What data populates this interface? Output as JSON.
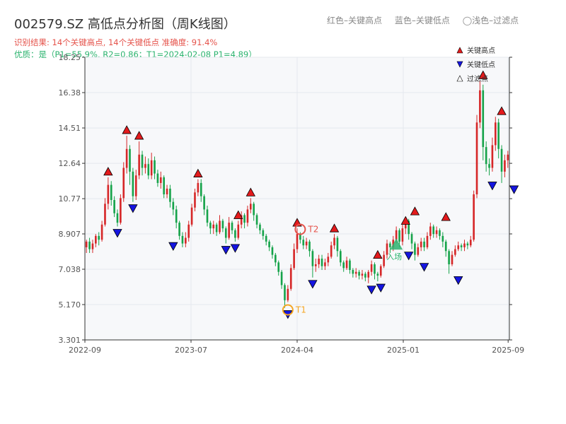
{
  "header": {
    "title": "002579.SZ 高低点分析图（周K线图）",
    "legend_high": "红色–关键高点",
    "legend_low": "蓝色–关键低点",
    "legend_filtered": "◯浅色–过滤点",
    "result_line": "识别结果: 14个关键高点, 14个关键低点  准确度: 91.4%",
    "quality_line": "优质：是（P1=55.9%, R2=0.86；T1=2024-02-08 P1=4.89）"
  },
  "colors": {
    "up": "#d62728",
    "down": "#16a34a",
    "high_marker": "#e31a1c",
    "low_marker": "#1515e0",
    "grid": "#e4e8ee",
    "plot_bg": "#f7f8fa",
    "t1": "#f5a623",
    "t2": "#e5534b",
    "entry": "#2bb36e"
  },
  "chart_data": {
    "type": "candlestick",
    "title": "002579.SZ 高低点分析图（周K线图）",
    "xlabel": "",
    "ylabel": "",
    "ylim": [
      3.301,
      18.25
    ],
    "y_ticks": [
      "3.301",
      "5.170",
      "7.038",
      "8.907",
      "10.77",
      "12.64",
      "14.51",
      "16.38",
      "18.25"
    ],
    "x_ticks": [
      "2022-09",
      "2023-07",
      "2024-04",
      "2025-01",
      "2025-09"
    ],
    "grid": true,
    "legend": [
      "关键高点",
      "关键低点",
      "过滤点"
    ],
    "legend_placement": "top-right",
    "candles": [
      [
        8.2,
        8.5,
        7.9,
        8.6
      ],
      [
        8.5,
        8.1,
        7.9,
        8.7
      ],
      [
        8.1,
        8.4,
        7.9,
        8.6
      ],
      [
        8.4,
        8.8,
        8.2,
        8.9
      ],
      [
        8.8,
        8.6,
        8.3,
        9.0
      ],
      [
        8.6,
        9.4,
        8.5,
        9.6
      ],
      [
        9.4,
        10.5,
        9.3,
        10.8
      ],
      [
        10.5,
        11.5,
        10.2,
        11.9
      ],
      [
        11.5,
        10.7,
        10.4,
        11.7
      ],
      [
        10.7,
        10.0,
        9.8,
        10.9
      ],
      [
        10.0,
        9.5,
        9.3,
        10.2
      ],
      [
        9.5,
        10.8,
        9.4,
        11.0
      ],
      [
        10.8,
        12.4,
        10.6,
        12.7
      ],
      [
        12.4,
        13.4,
        12.1,
        14.1
      ],
      [
        13.4,
        12.2,
        11.5,
        13.6
      ],
      [
        12.2,
        10.9,
        10.6,
        12.4
      ],
      [
        10.9,
        12.0,
        10.7,
        12.3
      ],
      [
        12.0,
        13.1,
        11.8,
        13.8
      ],
      [
        13.1,
        12.4,
        12.0,
        13.3
      ],
      [
        12.4,
        12.6,
        12.1,
        13.0
      ],
      [
        12.6,
        12.0,
        11.8,
        12.9
      ],
      [
        12.0,
        12.8,
        11.8,
        13.2
      ],
      [
        12.8,
        12.1,
        11.8,
        13.0
      ],
      [
        12.1,
        11.6,
        11.4,
        12.3
      ],
      [
        11.6,
        11.9,
        11.3,
        12.2
      ],
      [
        11.9,
        11.0,
        10.8,
        12.0
      ],
      [
        11.0,
        11.3,
        10.8,
        11.5
      ],
      [
        11.3,
        10.6,
        10.3,
        11.5
      ],
      [
        10.6,
        10.2,
        9.9,
        10.8
      ],
      [
        10.2,
        9.5,
        9.2,
        10.4
      ],
      [
        9.5,
        8.8,
        8.6,
        9.6
      ],
      [
        8.8,
        8.4,
        8.2,
        9.0
      ],
      [
        8.4,
        8.7,
        8.2,
        9.0
      ],
      [
        8.7,
        9.4,
        8.5,
        9.6
      ],
      [
        9.4,
        10.3,
        9.3,
        10.5
      ],
      [
        10.3,
        11.1,
        10.1,
        11.3
      ],
      [
        11.1,
        11.6,
        10.9,
        11.8
      ],
      [
        11.6,
        10.9,
        10.6,
        11.8
      ],
      [
        10.9,
        10.2,
        9.9,
        11.0
      ],
      [
        10.2,
        9.5,
        9.3,
        10.4
      ],
      [
        9.5,
        9.2,
        8.9,
        9.6
      ],
      [
        9.2,
        9.4,
        8.9,
        9.6
      ],
      [
        9.4,
        9.0,
        8.8,
        9.5
      ],
      [
        9.0,
        9.6,
        8.9,
        9.9
      ],
      [
        9.6,
        9.2,
        9.0,
        9.7
      ],
      [
        9.2,
        8.7,
        8.4,
        9.3
      ],
      [
        8.7,
        9.5,
        8.6,
        9.8
      ],
      [
        9.5,
        9.1,
        8.9,
        9.6
      ],
      [
        9.1,
        8.7,
        8.5,
        9.2
      ],
      [
        8.7,
        9.4,
        8.6,
        9.6
      ],
      [
        9.4,
        9.9,
        9.2,
        10.1
      ],
      [
        9.9,
        9.5,
        9.2,
        10.0
      ],
      [
        9.5,
        10.2,
        9.3,
        10.4
      ],
      [
        10.2,
        10.5,
        10.0,
        10.8
      ],
      [
        10.5,
        9.9,
        9.6,
        10.6
      ],
      [
        9.9,
        9.4,
        9.2,
        10.0
      ],
      [
        9.4,
        9.1,
        8.9,
        9.5
      ],
      [
        9.1,
        8.8,
        8.6,
        9.2
      ],
      [
        8.8,
        8.5,
        8.3,
        8.9
      ],
      [
        8.5,
        8.2,
        8.0,
        8.6
      ],
      [
        8.2,
        7.8,
        7.6,
        8.3
      ],
      [
        7.8,
        7.4,
        7.2,
        7.9
      ],
      [
        7.4,
        6.9,
        6.7,
        7.5
      ],
      [
        6.9,
        6.2,
        6.0,
        7.0
      ],
      [
        6.2,
        5.4,
        5.0,
        6.3
      ],
      [
        5.4,
        6.0,
        5.3,
        6.2
      ],
      [
        6.0,
        7.1,
        5.9,
        7.3
      ],
      [
        7.1,
        8.1,
        7.0,
        8.4
      ],
      [
        8.1,
        8.9,
        7.9,
        9.2
      ],
      [
        8.9,
        8.6,
        8.4,
        9.0
      ],
      [
        8.6,
        8.3,
        8.1,
        8.8
      ],
      [
        8.3,
        8.5,
        8.1,
        8.7
      ],
      [
        8.5,
        8.0,
        7.7,
        8.6
      ],
      [
        8.0,
        7.2,
        6.6,
        8.1
      ],
      [
        7.2,
        7.3,
        6.9,
        7.6
      ],
      [
        7.3,
        7.6,
        7.1,
        7.8
      ],
      [
        7.6,
        7.2,
        7.0,
        7.8
      ],
      [
        7.2,
        7.4,
        7.0,
        7.6
      ],
      [
        7.4,
        7.7,
        7.2,
        7.9
      ],
      [
        7.7,
        8.3,
        7.6,
        8.5
      ],
      [
        8.3,
        8.7,
        8.1,
        8.9
      ],
      [
        8.7,
        8.0,
        7.7,
        8.8
      ],
      [
        8.0,
        7.4,
        7.2,
        8.1
      ],
      [
        7.4,
        7.1,
        6.9,
        7.5
      ],
      [
        7.1,
        7.5,
        7.0,
        7.7
      ],
      [
        7.5,
        7.0,
        6.8,
        7.6
      ],
      [
        7.0,
        6.8,
        6.6,
        7.1
      ],
      [
        6.8,
        6.9,
        6.6,
        7.1
      ],
      [
        6.9,
        6.7,
        6.5,
        7.0
      ],
      [
        6.7,
        6.8,
        6.5,
        7.0
      ],
      [
        6.8,
        6.6,
        6.4,
        6.9
      ],
      [
        6.6,
        6.9,
        6.3,
        7.0
      ],
      [
        6.9,
        7.3,
        6.7,
        7.5
      ],
      [
        7.3,
        6.8,
        6.5,
        7.4
      ],
      [
        6.8,
        6.7,
        6.4,
        6.9
      ],
      [
        6.7,
        7.2,
        6.6,
        7.3
      ],
      [
        7.2,
        7.8,
        7.1,
        8.0
      ],
      [
        7.8,
        8.4,
        7.6,
        8.6
      ],
      [
        8.4,
        8.2,
        7.9,
        8.5
      ],
      [
        8.2,
        8.6,
        8.0,
        8.8
      ],
      [
        8.6,
        9.1,
        8.4,
        9.3
      ],
      [
        9.1,
        8.5,
        8.2,
        9.2
      ],
      [
        8.5,
        9.2,
        8.3,
        9.4
      ],
      [
        9.2,
        9.6,
        8.9,
        9.8
      ],
      [
        9.6,
        8.9,
        8.6,
        9.7
      ],
      [
        8.9,
        8.4,
        8.1,
        9.0
      ],
      [
        8.4,
        7.8,
        7.5,
        8.5
      ],
      [
        7.8,
        8.2,
        7.7,
        8.4
      ],
      [
        8.2,
        8.5,
        8.0,
        8.7
      ],
      [
        8.5,
        8.2,
        8.0,
        8.7
      ],
      [
        8.2,
        8.8,
        8.1,
        9.0
      ],
      [
        8.8,
        9.3,
        8.6,
        9.5
      ],
      [
        9.3,
        8.9,
        8.7,
        9.4
      ],
      [
        8.9,
        9.1,
        8.7,
        9.3
      ],
      [
        9.1,
        8.8,
        8.6,
        9.2
      ],
      [
        8.8,
        8.5,
        8.2,
        9.0
      ],
      [
        8.5,
        8.0,
        7.7,
        8.6
      ],
      [
        8.0,
        7.3,
        6.8,
        8.1
      ],
      [
        7.3,
        7.8,
        7.2,
        8.0
      ],
      [
        7.8,
        8.1,
        7.7,
        8.3
      ],
      [
        8.1,
        8.3,
        8.0,
        8.5
      ],
      [
        8.3,
        8.2,
        8.0,
        8.4
      ],
      [
        8.2,
        8.4,
        8.0,
        8.6
      ],
      [
        8.4,
        8.3,
        8.1,
        8.5
      ],
      [
        8.3,
        8.6,
        8.2,
        8.8
      ],
      [
        8.6,
        11.0,
        8.5,
        11.2
      ],
      [
        11.0,
        14.8,
        10.8,
        15.2
      ],
      [
        14.8,
        16.5,
        14.5,
        17.0
      ],
      [
        16.5,
        13.5,
        12.8,
        16.8
      ],
      [
        13.5,
        12.6,
        12.2,
        13.8
      ],
      [
        12.6,
        12.4,
        12.0,
        12.9
      ],
      [
        12.4,
        13.6,
        12.2,
        14.0
      ],
      [
        13.6,
        14.8,
        13.3,
        15.1
      ],
      [
        14.8,
        13.4,
        12.9,
        15.0
      ],
      [
        13.4,
        12.2,
        11.6,
        13.6
      ],
      [
        12.2,
        12.8,
        11.9,
        13.1
      ],
      [
        12.8,
        13.1,
        12.4,
        13.3
      ]
    ],
    "key_highs": [
      {
        "i": 7,
        "price": 11.9
      },
      {
        "i": 13,
        "price": 14.1
      },
      {
        "i": 17,
        "price": 13.8
      },
      {
        "i": 36,
        "price": 11.8
      },
      {
        "i": 49,
        "price": 9.6
      },
      {
        "i": 53,
        "price": 10.8
      },
      {
        "i": 68,
        "price": 9.2
      },
      {
        "i": 80,
        "price": 8.9
      },
      {
        "i": 94,
        "price": 7.5
      },
      {
        "i": 103,
        "price": 9.3
      },
      {
        "i": 106,
        "price": 9.8
      },
      {
        "i": 116,
        "price": 9.5
      },
      {
        "i": 128,
        "price": 17.0
      },
      {
        "i": 134,
        "price": 15.1
      }
    ],
    "key_lows": [
      {
        "i": 10,
        "price": 9.3
      },
      {
        "i": 15,
        "price": 10.6
      },
      {
        "i": 28,
        "price": 8.6
      },
      {
        "i": 45,
        "price": 8.4
      },
      {
        "i": 48,
        "price": 8.5
      },
      {
        "i": 65,
        "price": 5.0
      },
      {
        "i": 73,
        "price": 6.6
      },
      {
        "i": 92,
        "price": 6.3
      },
      {
        "i": 95,
        "price": 6.4
      },
      {
        "i": 104,
        "price": 8.1
      },
      {
        "i": 109,
        "price": 7.5
      },
      {
        "i": 120,
        "price": 6.8
      },
      {
        "i": 131,
        "price": 11.8
      },
      {
        "i": 138,
        "price": 11.6
      }
    ],
    "annotations": [
      {
        "label": "T1",
        "i": 65,
        "price": 4.89
      },
      {
        "label": "T2",
        "i": 69,
        "price": 9.15
      },
      {
        "label": "入场",
        "i": 100,
        "price": 8.3
      }
    ]
  }
}
